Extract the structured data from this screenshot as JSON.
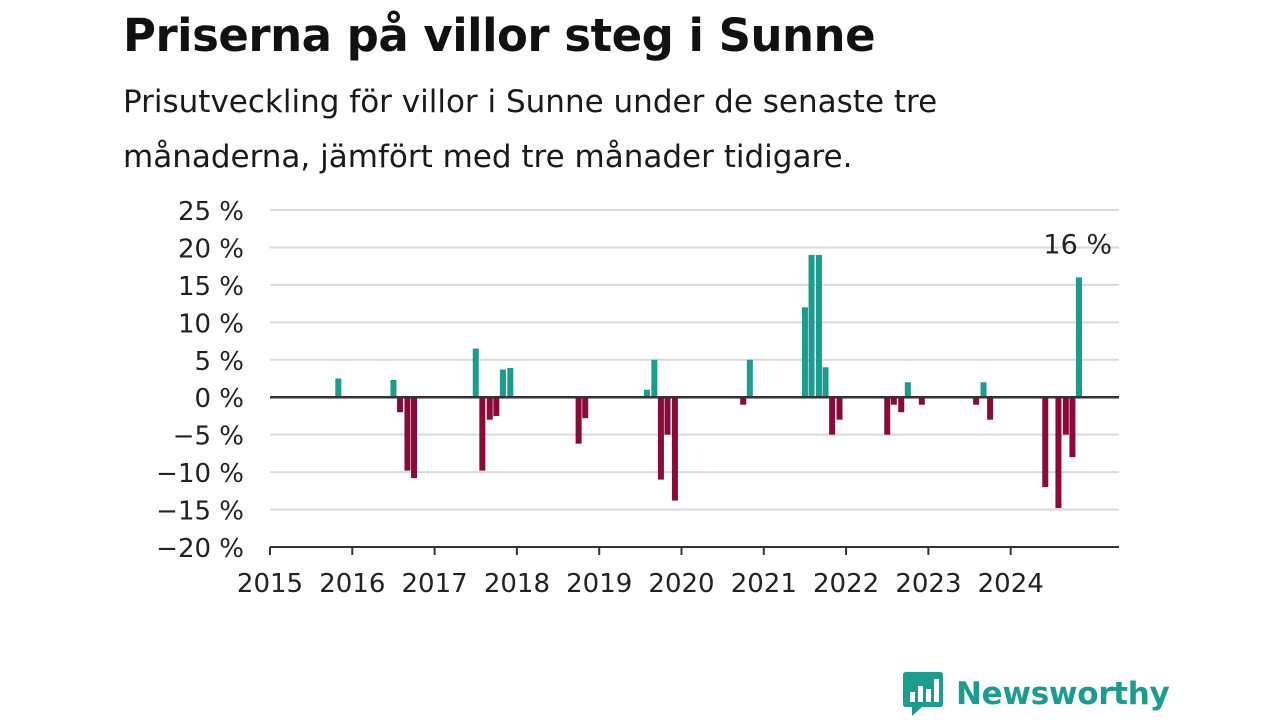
{
  "chart_data": {
    "type": "bar",
    "title": "Priserna på villor steg i Sunne",
    "subtitle": "Prisutveckling för villor i Sunne under de senaste tre månaderna, jämfört med tre månader tidigare.",
    "xlabel": "",
    "ylabel": "",
    "x_unit": "year",
    "y_unit": "%",
    "xlim": [
      2015,
      2025.3
    ],
    "ylim": [
      -20,
      25
    ],
    "yticks": [
      25,
      20,
      15,
      10,
      5,
      0,
      -5,
      -10,
      -15,
      -20
    ],
    "ytick_labels": [
      "25 %",
      "20 %",
      "15 %",
      "10 %",
      "5 %",
      "0 %",
      "−5 %",
      "−10 %",
      "−15 %",
      "−20 %"
    ],
    "xticks": [
      2015,
      2016,
      2017,
      2018,
      2019,
      2020,
      2021,
      2022,
      2023,
      2024
    ],
    "xtick_labels": [
      "2015",
      "2016",
      "2017",
      "2018",
      "2019",
      "2020",
      "2021",
      "2022",
      "2023",
      "2024"
    ],
    "grid": true,
    "legend": "none",
    "colors": {
      "positive": "#1a9c8f",
      "negative": "#8c0a3a",
      "grid": "#d9d9d9",
      "axis": "#333333"
    },
    "annotation": {
      "x": 2024.83,
      "y": 16,
      "text": "16 %"
    },
    "x": [
      2015.83,
      2016.5,
      2016.58,
      2016.67,
      2016.75,
      2017.5,
      2017.58,
      2017.67,
      2017.75,
      2017.83,
      2017.92,
      2018.75,
      2018.83,
      2019.58,
      2019.67,
      2019.75,
      2019.83,
      2019.92,
      2020.75,
      2020.83,
      2021.5,
      2021.58,
      2021.67,
      2021.75,
      2021.83,
      2021.92,
      2022.5,
      2022.58,
      2022.67,
      2022.75,
      2022.92,
      2023.58,
      2023.67,
      2023.75,
      2024.42,
      2024.58,
      2024.67,
      2024.75,
      2024.83
    ],
    "values": [
      2.5,
      2.3,
      -2,
      -9.8,
      -10.8,
      6.5,
      -9.8,
      -3,
      -2.5,
      3.7,
      3.9,
      -6.2,
      -2.8,
      1,
      5,
      -11,
      -5,
      -13.8,
      -1,
      5,
      12,
      19,
      19,
      4,
      -5,
      -3,
      -5,
      -1,
      -2,
      2,
      -1,
      -1,
      2,
      -3,
      -12,
      -14.8,
      -5,
      -8,
      16
    ]
  },
  "logo": {
    "text": "Newsworthy",
    "icon": "bar-chart-speech-bubble-icon"
  }
}
